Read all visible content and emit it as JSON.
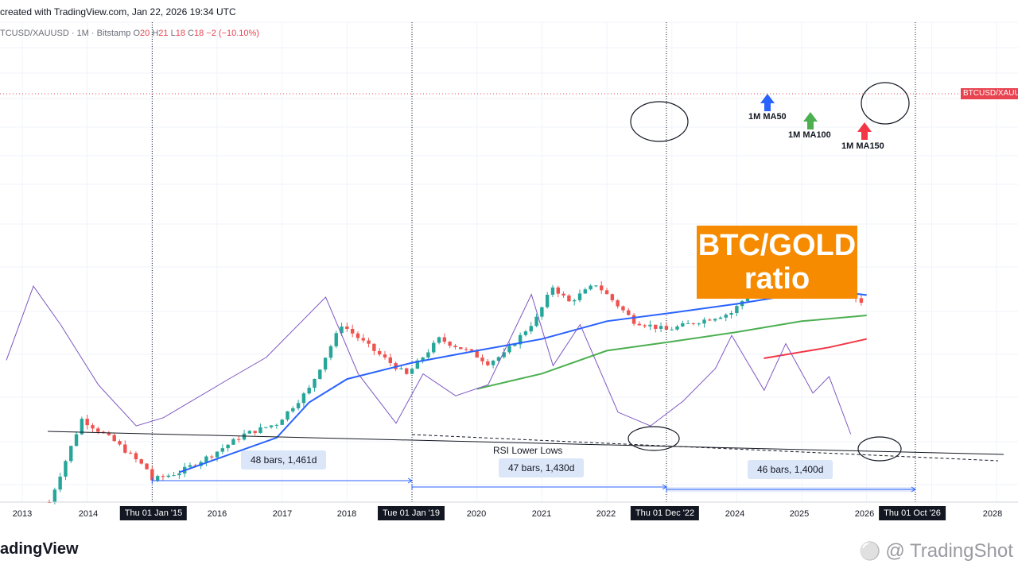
{
  "header": {
    "created": "created with TradingView.com, Jan 22, 2026 19:34 UTC",
    "symbol": "TCUSD/XAUUSD · 1M · Bitstamp",
    "ohlc": [
      {
        "k": "O",
        "v": "20"
      },
      {
        "k": "H",
        "v": "21"
      },
      {
        "k": "L",
        "v": "18"
      },
      {
        "k": "C",
        "v": "18"
      }
    ],
    "change": "−2 (−10.10%)"
  },
  "price_badge": "BTCUSD/XAUU",
  "title_box": {
    "line1": "BTC/GOLD",
    "line2": "ratio"
  },
  "ma_labels": {
    "ma50": "1M MA50",
    "ma100": "1M MA100",
    "ma150": "1M MA150"
  },
  "ranges": [
    "48 bars, 1,461d",
    "47 bars, 1,430d",
    "46 bars, 1,400d"
  ],
  "rsi_annotation": "RSI Lower Lows",
  "x_axis": {
    "years": [
      "2013",
      "2014",
      "2016",
      "2017",
      "2018",
      "2020",
      "2021",
      "2022",
      "2024",
      "2025",
      "2026",
      "2028"
    ],
    "highlighted": [
      "Thu 01 Jan '15",
      "Tue 01 Jan '19",
      "Thu 01 Dec '22",
      "Thu 01 Oct '26"
    ]
  },
  "footer": {
    "brand": "adingView",
    "watermark": "@ TradingShot"
  },
  "colors": {
    "up": "#26a69a",
    "down": "#ef5350",
    "ma50": "#2962ff",
    "ma100": "#4caf50",
    "ma150": "#f23645",
    "rsi": "#7e57c2",
    "box": "#f78b00"
  },
  "chart_data": {
    "type": "line",
    "title": "BTC/GOLD ratio",
    "symbol": "BTCUSD/XAUUSD",
    "interval": "1M",
    "yscale": "log",
    "grid": true,
    "x_range": [
      "2013-01",
      "2028-06"
    ],
    "price_series": {
      "name": "BTCUSD/XAUUSD",
      "x": [
        "2013-06",
        "2013-12",
        "2014-06",
        "2014-12",
        "2015-01",
        "2015-06",
        "2015-12",
        "2016-06",
        "2016-12",
        "2017-06",
        "2017-12",
        "2018-06",
        "2018-12",
        "2019-06",
        "2019-12",
        "2020-03",
        "2020-06",
        "2020-12",
        "2021-03",
        "2021-06",
        "2021-11",
        "2022-06",
        "2022-12",
        "2023-06",
        "2023-12",
        "2024-03",
        "2024-06",
        "2024-12",
        "2025-06",
        "2025-09",
        "2026-01"
      ],
      "y": [
        0.1,
        0.9,
        0.5,
        0.24,
        0.18,
        0.22,
        0.35,
        0.6,
        0.8,
        2.0,
        11,
        5.5,
        2.9,
        7.5,
        5.2,
        4.0,
        5.0,
        13,
        30,
        20,
        32,
        12,
        9.5,
        12,
        15,
        24,
        28,
        38,
        34,
        29,
        18
      ]
    },
    "moving_averages": [
      {
        "name": "1M MA50",
        "x": [
          "2015-06",
          "2016-12",
          "2017-06",
          "2018-01",
          "2019-01",
          "2020-01",
          "2021-01",
          "2022-01",
          "2023-01",
          "2024-01",
          "2025-01",
          "2025-06",
          "2026-01"
        ],
        "y": [
          0.22,
          0.55,
          1.4,
          2.6,
          4.0,
          5.5,
          7.5,
          12,
          15,
          19,
          25,
          27,
          24
        ]
      },
      {
        "name": "1M MA100",
        "x": [
          "2020-01",
          "2021-01",
          "2022-01",
          "2023-01",
          "2024-01",
          "2025-01",
          "2026-01"
        ],
        "y": [
          2.0,
          3.0,
          5.5,
          7.0,
          9.0,
          12,
          14
        ]
      },
      {
        "name": "1M MA150",
        "x": [
          "2024-06",
          "2025-06",
          "2026-01"
        ],
        "y": [
          4.5,
          6.0,
          7.5
        ]
      }
    ],
    "rsi": {
      "name": "RSI",
      "x": [
        "2013-01",
        "2013-06",
        "2013-11",
        "2014-06",
        "2015-01",
        "2015-06",
        "2016-06",
        "2017-01",
        "2017-12",
        "2018-06",
        "2019-01",
        "2019-06",
        "2019-12",
        "2020-06",
        "2021-02",
        "2021-06",
        "2021-11",
        "2022-06",
        "2022-12",
        "2023-06",
        "2023-12",
        "2024-03",
        "2024-09",
        "2025-01",
        "2025-06",
        "2025-09",
        "2026-01"
      ],
      "y": [
        57,
        84,
        70,
        48,
        33,
        36,
        50,
        58,
        80,
        52,
        34,
        52,
        44,
        48,
        81,
        55,
        70,
        38,
        33,
        42,
        54,
        66,
        46,
        63,
        45,
        51,
        30
      ]
    },
    "annotations": [
      {
        "type": "range",
        "from": "2015-01",
        "to": "2019-01",
        "text": "48 bars, 1,461d"
      },
      {
        "type": "range",
        "from": "2019-01",
        "to": "2022-12",
        "text": "47 bars, 1,430d"
      },
      {
        "type": "range",
        "from": "2022-12",
        "to": "2026-10",
        "text": "46 bars, 1,400d"
      },
      {
        "type": "trendline",
        "text": "RSI Lower Lows"
      }
    ],
    "legend": "none"
  }
}
